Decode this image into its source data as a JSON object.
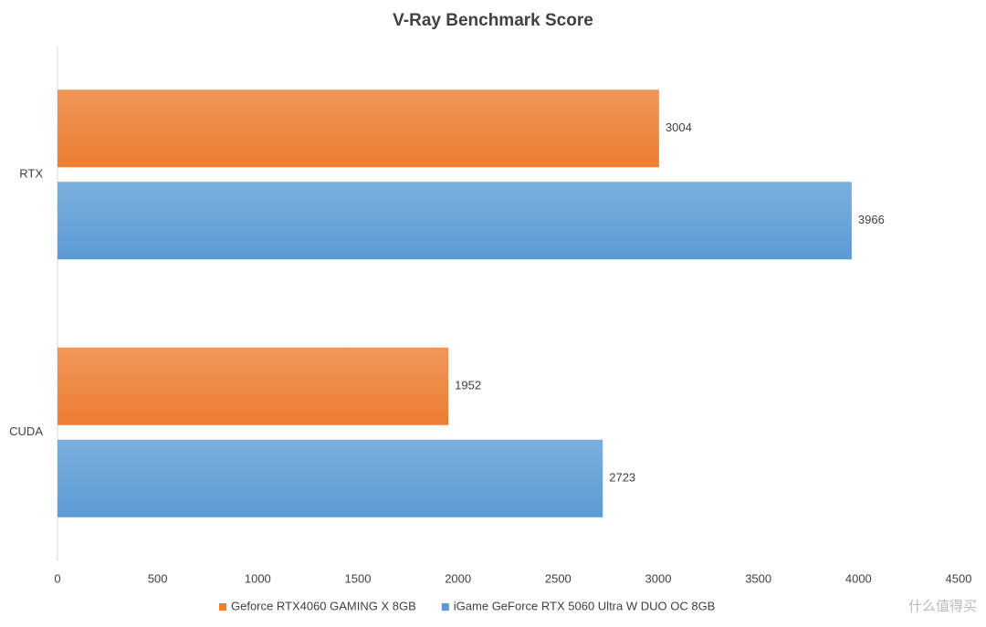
{
  "chart_data": {
    "type": "hbar",
    "title": "V-Ray Benchmark Score",
    "categories": [
      "RTX",
      "CUDA"
    ],
    "series": [
      {
        "name": "Geforce RTX4060 GAMING X 8GB",
        "color": "#ed7d31",
        "values": [
          3004,
          1952
        ]
      },
      {
        "name": "iGame GeForce RTX 5060 Ultra W DUO OC 8GB",
        "color": "#5b9bd5",
        "values": [
          3966,
          2723
        ]
      }
    ],
    "xlim": [
      0,
      4500
    ],
    "xticks": [
      0,
      500,
      1000,
      1500,
      2000,
      2500,
      3000,
      3500,
      4000,
      4500
    ],
    "legend": "bottom",
    "watermark": "什么值得买"
  }
}
